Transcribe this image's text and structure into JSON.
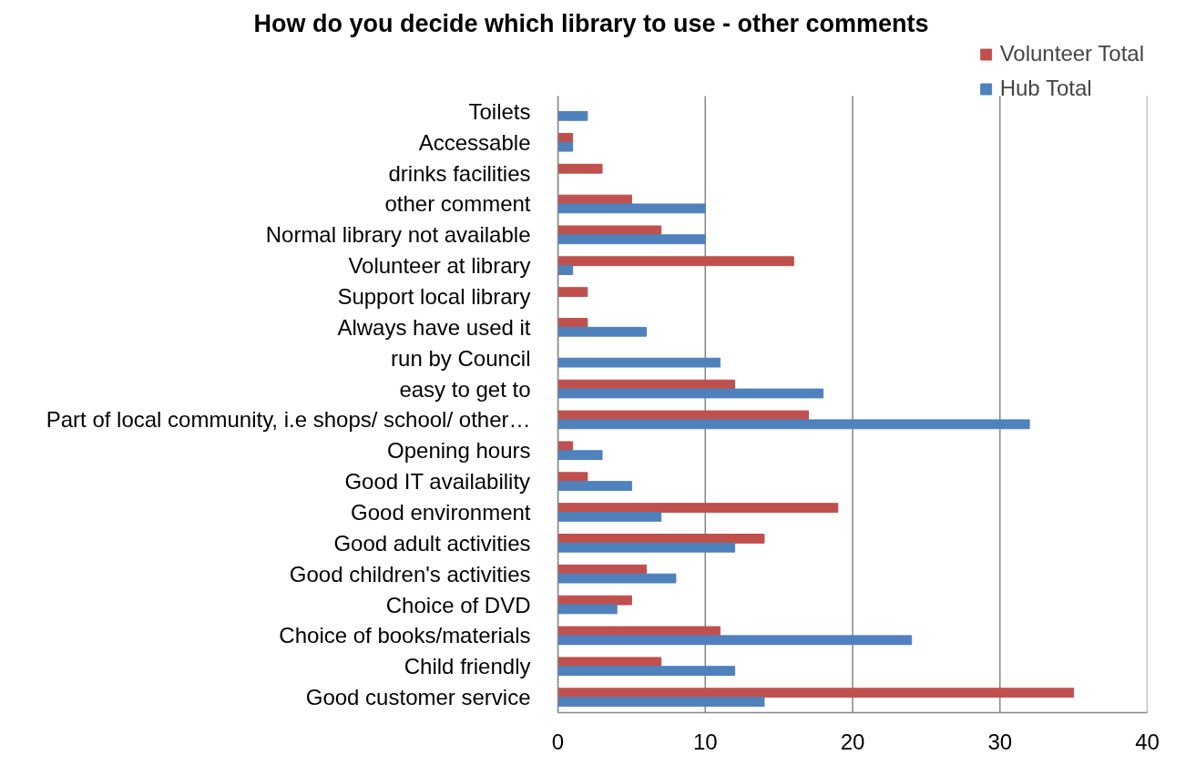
{
  "chart_data": {
    "type": "bar",
    "orientation": "horizontal",
    "title": "How do you decide which library to use - other comments",
    "categories": [
      "Toilets",
      "Accessable",
      "drinks facilities",
      "other comment",
      "Normal library not available",
      "Volunteer at library",
      "Support local library",
      "Always have used it",
      "run by Council",
      "easy to get to",
      "Part of local community, i.e shops/ school/ other…",
      "Opening hours",
      "Good IT availability",
      "Good environment",
      "Good adult activities",
      "Good children's activities",
      "Choice of DVD",
      "Choice of books/materials",
      "Child friendly",
      "Good customer service"
    ],
    "series": [
      {
        "name": "Volunteer Total",
        "color": "#c0504d",
        "values": [
          null,
          1,
          3,
          5,
          7,
          16,
          2,
          2,
          null,
          12,
          17,
          1,
          2,
          19,
          14,
          6,
          5,
          11,
          7,
          35
        ]
      },
      {
        "name": "Hub Total",
        "color": "#4f81bd",
        "values": [
          2,
          1,
          null,
          10,
          10,
          1,
          null,
          6,
          11,
          18,
          32,
          3,
          5,
          7,
          12,
          8,
          4,
          24,
          12,
          14
        ]
      }
    ],
    "xlim": [
      0,
      40
    ],
    "xticks": [
      0,
      10,
      20,
      30,
      40
    ],
    "grid": "x",
    "legend": "top right"
  }
}
